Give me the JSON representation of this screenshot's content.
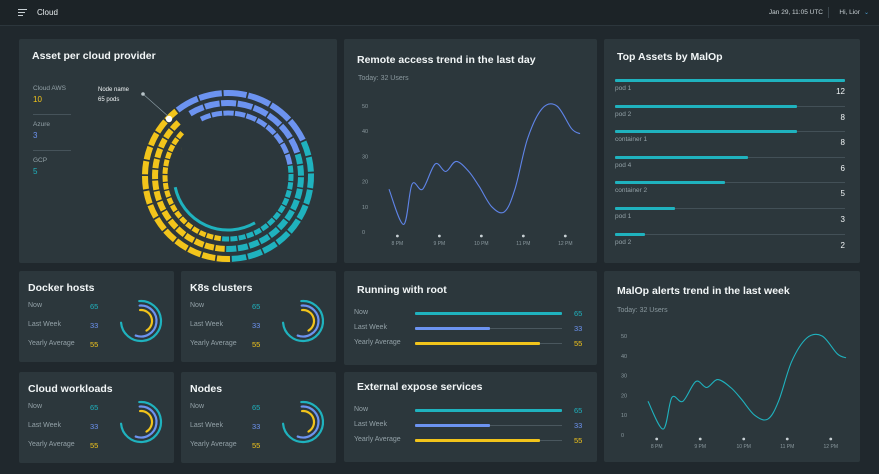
{
  "header": {
    "title": "Cloud",
    "datetime": "Jan 29, 11:05 UTC",
    "user": "Hi, Lior"
  },
  "colors": {
    "teal": "#1fb2be",
    "blue": "#6c93f0",
    "yellow": "#f2c41b"
  },
  "asset_provider": {
    "title": "Asset per cloud provider",
    "items": [
      {
        "label": "Cloud AWS",
        "value": "10",
        "color": "yellow"
      },
      {
        "label": "Azure",
        "value": "3",
        "color": "blue"
      },
      {
        "label": "GCP",
        "value": "5",
        "color": "teal"
      }
    ],
    "tooltip": {
      "name": "Node name",
      "detail": "65 pods"
    }
  },
  "remote_access": {
    "title": "Remote access trend in the last day",
    "subtitle": "Today: 32 Users"
  },
  "top_assets": {
    "title": "Top Assets by MalOp",
    "items": [
      {
        "label": "pod 1",
        "value": "12",
        "fraction": 1.0
      },
      {
        "label": "pod 2",
        "value": "8",
        "fraction": 0.79
      },
      {
        "label": "container 1",
        "value": "8",
        "fraction": 0.79
      },
      {
        "label": "pod 4",
        "value": "6",
        "fraction": 0.58
      },
      {
        "label": "container 2",
        "value": "5",
        "fraction": 0.48
      },
      {
        "label": "pod 1",
        "value": "3",
        "fraction": 0.26
      },
      {
        "label": "pod 2",
        "value": "2",
        "fraction": 0.13
      }
    ]
  },
  "stats_labels": {
    "now": "Now",
    "last_week": "Last Week",
    "yearly": "Yearly Average"
  },
  "stat_cards": [
    {
      "title": "Docker hosts",
      "now": "65",
      "last_week": "33",
      "yearly": "55"
    },
    {
      "title": "K8s clusters",
      "now": "65",
      "last_week": "33",
      "yearly": "55"
    },
    {
      "title": "Cloud workloads",
      "now": "65",
      "last_week": "33",
      "yearly": "55"
    },
    {
      "title": "Nodes",
      "now": "65",
      "last_week": "33",
      "yearly": "55"
    }
  ],
  "running_root": {
    "title": "Running with root",
    "rows": [
      {
        "label": "Now",
        "value": "65",
        "fraction": 1.0,
        "color": "teal"
      },
      {
        "label": "Last Week",
        "value": "33",
        "fraction": 0.51,
        "color": "blue"
      },
      {
        "label": "Yearly Average",
        "value": "55",
        "fraction": 0.85,
        "color": "yellow"
      }
    ]
  },
  "external_expose": {
    "title": "External expose services",
    "rows": [
      {
        "label": "Now",
        "value": "65",
        "fraction": 1.0,
        "color": "teal"
      },
      {
        "label": "Last Week",
        "value": "33",
        "fraction": 0.51,
        "color": "blue"
      },
      {
        "label": "Yearly Average",
        "value": "55",
        "fraction": 0.85,
        "color": "yellow"
      }
    ]
  },
  "malop_trend": {
    "title": "MalOp alerts trend in the last week",
    "subtitle": "Today: 32 Users"
  },
  "chart_data": [
    {
      "type": "line",
      "title": "Remote access trend in the last day",
      "x": [
        "8 PM",
        "9 PM",
        "10 PM",
        "11 PM",
        "12 PM"
      ],
      "yticks": [
        0,
        10,
        20,
        30,
        40,
        50
      ],
      "ylim": [
        0,
        50
      ],
      "series": [
        {
          "x": [
            7.8,
            8.15,
            8.35,
            8.6,
            8.9,
            9.15,
            9.4,
            9.7,
            9.95,
            10.25,
            10.55,
            10.8,
            11.1,
            11.45,
            11.8,
            12.15,
            12.35
          ],
          "y": [
            17,
            3,
            19,
            17,
            27,
            24,
            28,
            24,
            18,
            10,
            8,
            17,
            37,
            49,
            50,
            41,
            39
          ]
        }
      ]
    },
    {
      "type": "line",
      "title": "MalOp alerts trend in the last week",
      "x": [
        "8 PM",
        "9 PM",
        "10 PM",
        "11 PM",
        "12 PM"
      ],
      "yticks": [
        0,
        10,
        20,
        30,
        40,
        50
      ],
      "ylim": [
        0,
        50
      ],
      "series": [
        {
          "x": [
            7.8,
            8.15,
            8.35,
            8.6,
            8.9,
            9.15,
            9.4,
            9.7,
            9.95,
            10.25,
            10.55,
            10.8,
            11.1,
            11.45,
            11.8,
            12.15,
            12.35
          ],
          "y": [
            17,
            3,
            19,
            17,
            27,
            24,
            28,
            24,
            18,
            10,
            8,
            17,
            37,
            49,
            50,
            41,
            39
          ]
        }
      ]
    }
  ]
}
